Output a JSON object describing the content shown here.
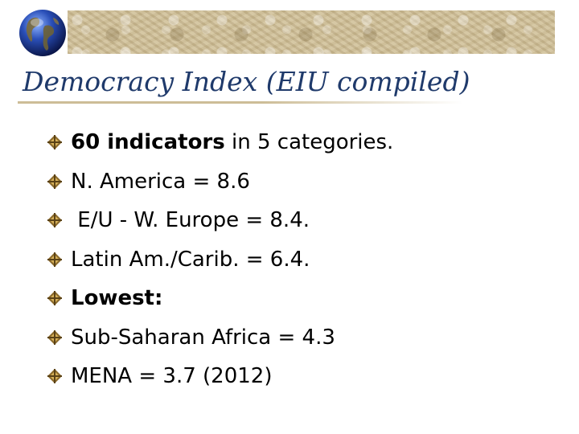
{
  "slide": {
    "title": "Democracy Index (EIU compiled)",
    "bullet_icon": "diamond-cross-bullet-icon",
    "items": [
      {
        "bold": "60 indicators",
        "text": " in 5 categories."
      },
      {
        "bold": "",
        "text": "N. America = 8.6"
      },
      {
        "bold": "",
        "text": " E/U - W. Europe = 8.4."
      },
      {
        "bold": "",
        "text": "Latin Am./Carib. = 6.4."
      },
      {
        "bold": "Lowest:",
        "text": ""
      },
      {
        "bold": "",
        "text": "Sub-Saharan Africa = 4.3"
      },
      {
        "bold": "",
        "text": "MENA = 3.7 (2012)"
      }
    ]
  },
  "colors": {
    "title": "#1f3a6b",
    "banner": "#cdbd97",
    "bullet": "#8b6a2b"
  }
}
